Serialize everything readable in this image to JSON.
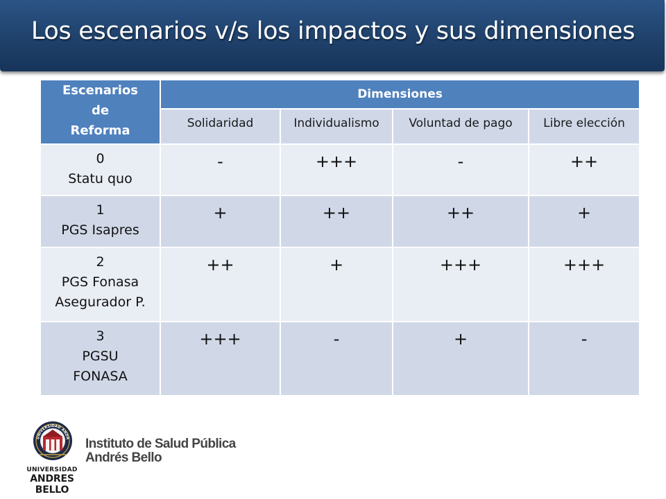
{
  "slide": {
    "title": "Los escenarios v/s los impactos y sus dimensiones"
  },
  "table": {
    "corner_header": [
      "Escenarios",
      "de",
      "Reforma"
    ],
    "group_header": "Dimensiones",
    "columns": [
      "Solidaridad",
      "Individualismo",
      "Voluntad de pago",
      "Libre elección"
    ],
    "rows": [
      {
        "scenario": [
          "0",
          "Statu quo"
        ],
        "values": [
          "-",
          "+++",
          "-",
          "++"
        ]
      },
      {
        "scenario": [
          "1",
          "PGS Isapres"
        ],
        "values": [
          "+",
          "++",
          "++",
          "+"
        ]
      },
      {
        "scenario": [
          "2",
          "PGS Fonasa",
          "Asegurador P."
        ],
        "values": [
          "++",
          "+",
          "+++",
          "+++"
        ]
      },
      {
        "scenario": [
          "3",
          "PGSU",
          "FONASA"
        ],
        "values": [
          "+++",
          "-",
          "+",
          "-"
        ]
      }
    ]
  },
  "footer": {
    "logo_line1": "UNIVERSIDAD",
    "logo_line2": "ANDRES BELLO",
    "seal_text": "UNIVERSIDAD ANDRES BELLO",
    "institute_line1": "Instituto de Salud Pública",
    "institute_line2": "Andrés Bello"
  }
}
